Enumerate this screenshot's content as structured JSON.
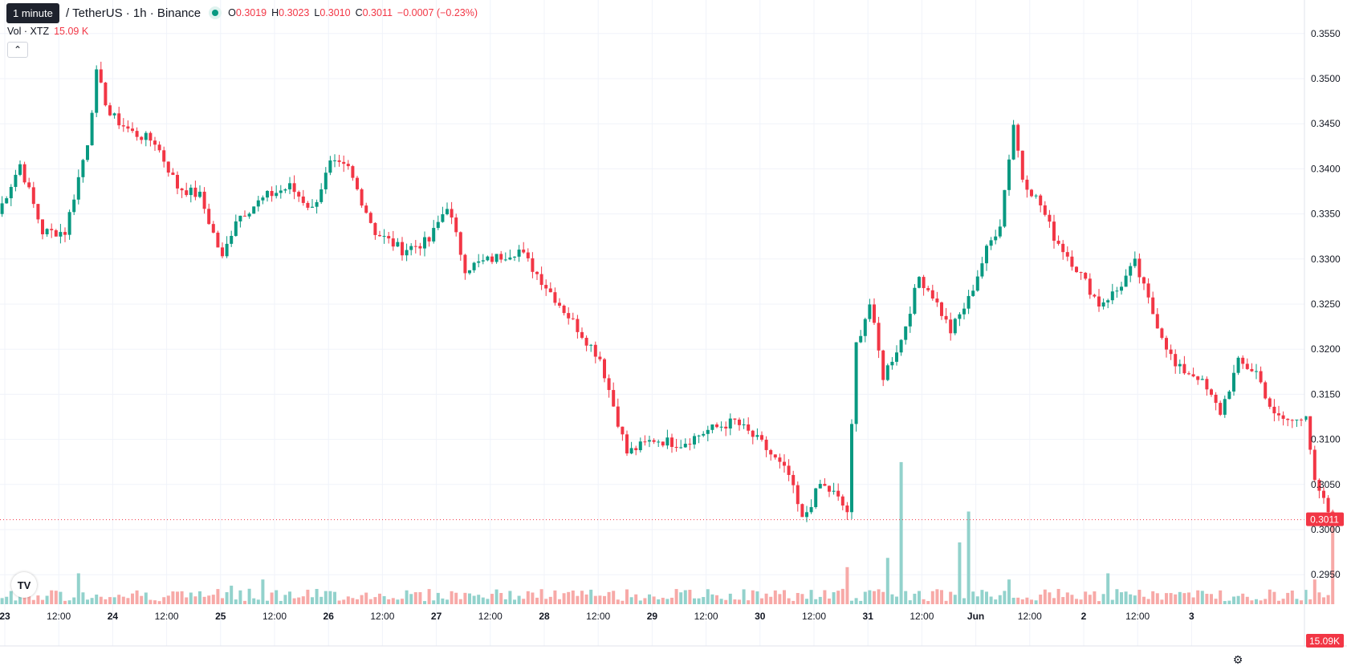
{
  "legend": {
    "interval_tooltip": "1 minute",
    "symbol": "/ TetherUS · 1h · Binance",
    "o_label": "O",
    "o_value": "0.3019",
    "h_label": "H",
    "h_value": "0.3023",
    "l_label": "L",
    "l_value": "0.3010",
    "c_label": "C",
    "c_value": "0.3011",
    "change": "−0.0007 (−0.23%)",
    "vol_label": "Vol · XTZ",
    "vol_value": "15.09 K"
  },
  "badges": {
    "price": "0.3011",
    "volume": "15.09K"
  },
  "logo_text": "TV",
  "colors": {
    "up": "#089981",
    "down": "#f23645",
    "up_vol": "#92d2cc",
    "down_vol": "#f7a9a7",
    "grid": "#f0f3fa"
  },
  "chart_data": {
    "type": "candlestick",
    "y_axis": {
      "ticks": [
        0.295,
        0.3,
        0.305,
        0.31,
        0.315,
        0.32,
        0.325,
        0.33,
        0.335,
        0.34,
        0.345,
        0.35,
        0.355
      ],
      "tick_labels": [
        "0.2950",
        "0.3000",
        "0.3050",
        "0.3100",
        "0.3150",
        "0.3200",
        "0.3250",
        "0.3300",
        "0.3350",
        "0.3400",
        "0.3450",
        "0.3500",
        "0.3550"
      ]
    },
    "x_axis": {
      "tick_labels": [
        "23",
        "12:00",
        "24",
        "12:00",
        "25",
        "12:00",
        "26",
        "12:00",
        "27",
        "12:00",
        "28",
        "12:00",
        "29",
        "12:00",
        "30",
        "12:00",
        "31",
        "12:00",
        "Jun",
        "12:00",
        "2",
        "12:00",
        "3"
      ]
    },
    "last_price": 0.3011,
    "key_points": [
      {
        "t": 0,
        "close": 0.335
      },
      {
        "t": 5,
        "close": 0.3405
      },
      {
        "t": 10,
        "close": 0.333
      },
      {
        "t": 15,
        "close": 0.333
      },
      {
        "t": 20,
        "close": 0.343
      },
      {
        "t": 22,
        "close": 0.3505
      },
      {
        "t": 25,
        "close": 0.346
      },
      {
        "t": 30,
        "close": 0.344
      },
      {
        "t": 35,
        "close": 0.343
      },
      {
        "t": 40,
        "close": 0.338
      },
      {
        "t": 45,
        "close": 0.337
      },
      {
        "t": 50,
        "close": 0.33
      },
      {
        "t": 53,
        "close": 0.3345
      },
      {
        "t": 60,
        "close": 0.337
      },
      {
        "t": 65,
        "close": 0.338
      },
      {
        "t": 70,
        "close": 0.3355
      },
      {
        "t": 74,
        "close": 0.3405
      },
      {
        "t": 78,
        "close": 0.34
      },
      {
        "t": 84,
        "close": 0.333
      },
      {
        "t": 90,
        "close": 0.331
      },
      {
        "t": 96,
        "close": 0.332
      },
      {
        "t": 100,
        "close": 0.336
      },
      {
        "t": 104,
        "close": 0.329
      },
      {
        "t": 110,
        "close": 0.33
      },
      {
        "t": 116,
        "close": 0.331
      },
      {
        "t": 122,
        "close": 0.327
      },
      {
        "t": 128,
        "close": 0.323
      },
      {
        "t": 134,
        "close": 0.319
      },
      {
        "t": 140,
        "close": 0.3085
      },
      {
        "t": 146,
        "close": 0.31
      },
      {
        "t": 152,
        "close": 0.3095
      },
      {
        "t": 158,
        "close": 0.311
      },
      {
        "t": 164,
        "close": 0.312
      },
      {
        "t": 170,
        "close": 0.3095
      },
      {
        "t": 176,
        "close": 0.306
      },
      {
        "t": 179,
        "close": 0.301
      },
      {
        "t": 183,
        "close": 0.305
      },
      {
        "t": 186,
        "close": 0.304
      },
      {
        "t": 189,
        "close": 0.302
      },
      {
        "t": 191,
        "close": 0.3205
      },
      {
        "t": 194,
        "close": 0.325
      },
      {
        "t": 197,
        "close": 0.317
      },
      {
        "t": 201,
        "close": 0.321
      },
      {
        "t": 205,
        "close": 0.328
      },
      {
        "t": 208,
        "close": 0.326
      },
      {
        "t": 212,
        "close": 0.322
      },
      {
        "t": 216,
        "close": 0.3255
      },
      {
        "t": 220,
        "close": 0.331
      },
      {
        "t": 223,
        "close": 0.334
      },
      {
        "t": 226,
        "close": 0.345
      },
      {
        "t": 228,
        "close": 0.339
      },
      {
        "t": 232,
        "close": 0.336
      },
      {
        "t": 235,
        "close": 0.3325
      },
      {
        "t": 240,
        "close": 0.329
      },
      {
        "t": 245,
        "close": 0.325
      },
      {
        "t": 249,
        "close": 0.3265
      },
      {
        "t": 253,
        "close": 0.3295
      },
      {
        "t": 257,
        "close": 0.324
      },
      {
        "t": 262,
        "close": 0.318
      },
      {
        "t": 267,
        "close": 0.317
      },
      {
        "t": 272,
        "close": 0.313
      },
      {
        "t": 276,
        "close": 0.3185
      },
      {
        "t": 280,
        "close": 0.3175
      },
      {
        "t": 284,
        "close": 0.3125
      },
      {
        "t": 288,
        "close": 0.312
      },
      {
        "t": 291,
        "close": 0.313
      },
      {
        "t": 293,
        "close": 0.305
      },
      {
        "t": 296,
        "close": 0.302
      },
      {
        "t": 297,
        "close": 0.3011
      }
    ],
    "volume_spikes": [
      {
        "t": 18,
        "value": 5.0
      },
      {
        "t": 52,
        "value": 3.0
      },
      {
        "t": 59,
        "value": 4.0
      },
      {
        "t": 189,
        "value": 6.0
      },
      {
        "t": 198,
        "value": 7.5
      },
      {
        "t": 201,
        "value": 23.0
      },
      {
        "t": 214,
        "value": 10.0
      },
      {
        "t": 216,
        "value": 15.0
      },
      {
        "t": 225,
        "value": 4.0
      },
      {
        "t": 247,
        "value": 5.0
      },
      {
        "t": 293,
        "value": 4.0
      },
      {
        "t": 297,
        "value": 15.09
      }
    ]
  }
}
